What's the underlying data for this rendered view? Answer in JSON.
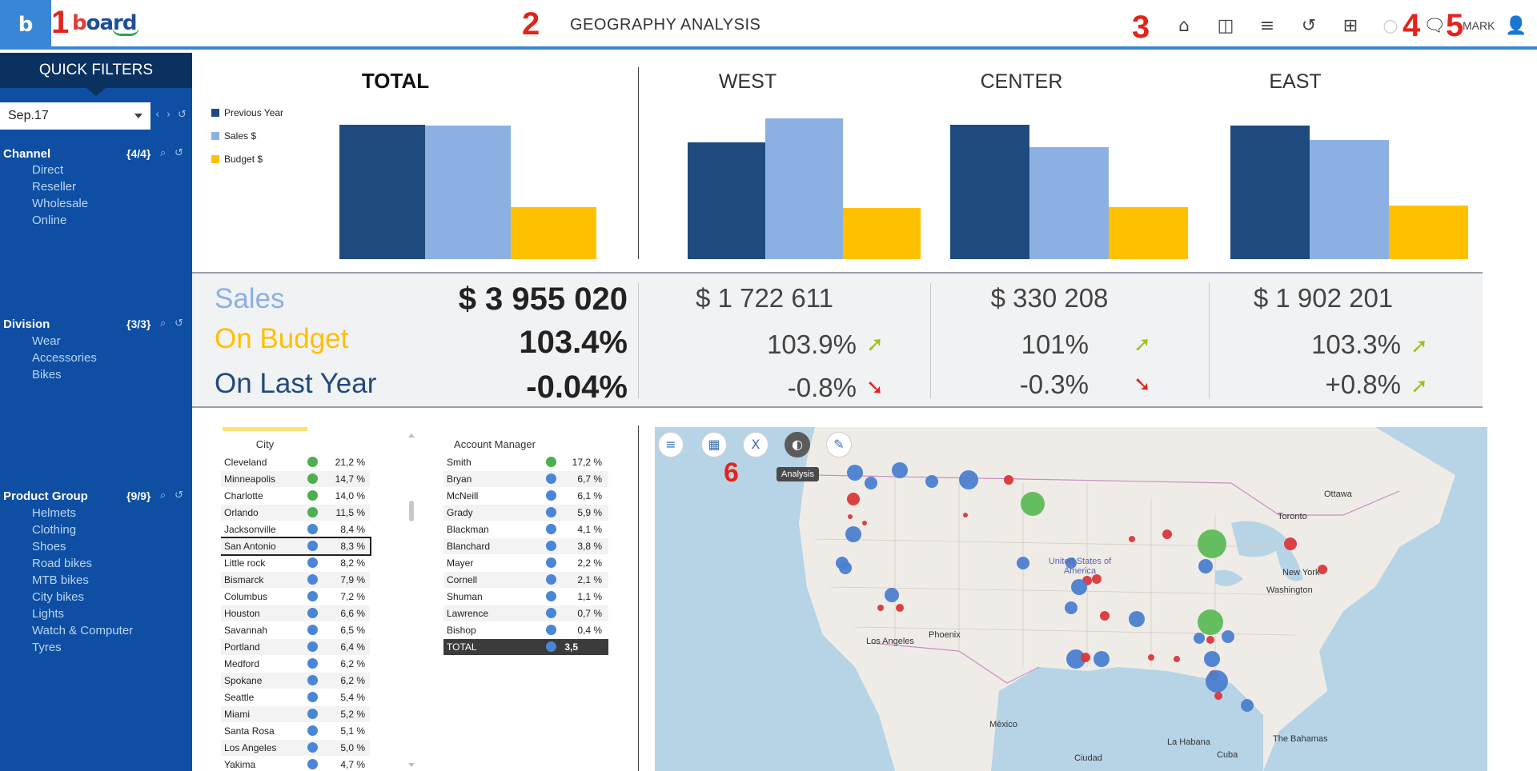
{
  "header": {
    "logo_letter": "b",
    "brand": "board",
    "title": "GEOGRAPHY ANALYSIS",
    "user": "MARK",
    "markers": [
      "1",
      "2",
      "3",
      "4",
      "5",
      "6"
    ],
    "icons": [
      "home-icon",
      "panel-icon",
      "dataflow-icon",
      "refresh-icon",
      "present-icon",
      "status-circle-icon",
      "comments-icon",
      "user-icon"
    ]
  },
  "sidebar": {
    "title": "QUICK FILTERS",
    "period": "Sep.17",
    "filters": [
      {
        "title": "Channel",
        "count": "{4/4}",
        "items": [
          "Direct",
          "Reseller",
          "Wholesale",
          "Online"
        ]
      },
      {
        "title": "Division",
        "count": "{3/3}",
        "items": [
          "Wear",
          "Accessories",
          "Bikes"
        ]
      },
      {
        "title": "Product Group",
        "count": "{9/9}",
        "items": [
          "Helmets",
          "Clothing",
          "Shoes",
          "Road bikes",
          "MTB bikes",
          "City bikes",
          "Lights",
          "Watch & Computer",
          "Tyres"
        ]
      }
    ]
  },
  "legend": [
    "Previous Year",
    "Sales $",
    "Budget $"
  ],
  "colors": {
    "previous_year": "#1f4a7e",
    "sales": "#8db0e3",
    "budget": "#ffc000",
    "up": "#9bc31c",
    "down": "#e3241b",
    "green_dot": "#4caf50",
    "blue_dot": "#4a86d8"
  },
  "chart_data": [
    {
      "type": "bar",
      "title": "TOTAL",
      "categories": [
        "Previous Year",
        "Sales $",
        "Budget $"
      ],
      "values": [
        140,
        139,
        54
      ],
      "ylim": [
        0,
        150
      ]
    },
    {
      "type": "bar",
      "title": "WEST",
      "categories": [
        "Previous Year",
        "Sales $",
        "Budget $"
      ],
      "values": [
        122,
        147,
        53
      ],
      "ylim": [
        0,
        150
      ]
    },
    {
      "type": "bar",
      "title": "CENTER",
      "categories": [
        "Previous Year",
        "Sales $",
        "Budget $"
      ],
      "values": [
        140,
        117,
        54
      ],
      "ylim": [
        0,
        150
      ]
    },
    {
      "type": "bar",
      "title": "EAST",
      "categories": [
        "Previous Year",
        "Sales $",
        "Budget $"
      ],
      "values": [
        139,
        124,
        56
      ],
      "ylim": [
        0,
        150
      ]
    }
  ],
  "kpi": {
    "labels": {
      "sales": "Sales",
      "on_budget": "On Budget",
      "on_last_year": "On Last Year"
    },
    "total": {
      "sales": "$ 3 955 020",
      "on_budget": "103.4%",
      "on_last_year": "-0.04%"
    },
    "regions": [
      {
        "name": "WEST",
        "sales": "$ 1 722 611",
        "on_budget": "103.9%",
        "budget_arrow": "up",
        "on_last_year": "-0.8%",
        "ly_arrow": "down"
      },
      {
        "name": "CENTER",
        "sales": "$ 330 208",
        "on_budget": "101%",
        "budget_arrow": "up",
        "on_last_year": "-0.3%",
        "ly_arrow": "down"
      },
      {
        "name": "EAST",
        "sales": "$ 1 902 201",
        "on_budget": "103.3%",
        "budget_arrow": "up",
        "on_last_year": "+0.8%",
        "ly_arrow": "up"
      }
    ]
  },
  "city_table": {
    "header": "City",
    "rows": [
      {
        "name": "Cleveland",
        "status": "green",
        "pct": "21,2 %"
      },
      {
        "name": "Minneapolis",
        "status": "green",
        "pct": "14,7 %"
      },
      {
        "name": "Charlotte",
        "status": "green",
        "pct": "14,0 %"
      },
      {
        "name": "Orlando",
        "status": "green",
        "pct": "11,5 %"
      },
      {
        "name": "Jacksonville",
        "status": "blue",
        "pct": "8,4 %"
      },
      {
        "name": "San Antonio",
        "status": "blue",
        "pct": "8,3 %"
      },
      {
        "name": "Little rock",
        "status": "blue",
        "pct": "8,2 %"
      },
      {
        "name": "Bismarck",
        "status": "blue",
        "pct": "7,9 %"
      },
      {
        "name": "Columbus",
        "status": "blue",
        "pct": "7,2 %"
      },
      {
        "name": "Houston",
        "status": "blue",
        "pct": "6,6 %"
      },
      {
        "name": "Savannah",
        "status": "blue",
        "pct": "6,5 %"
      },
      {
        "name": "Portland",
        "status": "blue",
        "pct": "6,4 %"
      },
      {
        "name": "Medford",
        "status": "blue",
        "pct": "6,2 %"
      },
      {
        "name": "Spokane",
        "status": "blue",
        "pct": "6,2 %"
      },
      {
        "name": "Seattle",
        "status": "blue",
        "pct": "5,4 %"
      },
      {
        "name": "Miami",
        "status": "blue",
        "pct": "5,2 %"
      },
      {
        "name": "Santa Rosa",
        "status": "blue",
        "pct": "5,1 %"
      },
      {
        "name": "Los Angeles",
        "status": "blue",
        "pct": "5,0 %"
      },
      {
        "name": "Yakima",
        "status": "blue",
        "pct": "4,7 %"
      }
    ]
  },
  "manager_table": {
    "header": "Account Manager",
    "rows": [
      {
        "name": "Smith",
        "status": "green",
        "pct": "17,2 %"
      },
      {
        "name": "Bryan",
        "status": "blue",
        "pct": "6,7 %"
      },
      {
        "name": "McNeill",
        "status": "blue",
        "pct": "6,1 %"
      },
      {
        "name": "Grady",
        "status": "blue",
        "pct": "5,9 %"
      },
      {
        "name": "Blackman",
        "status": "blue",
        "pct": "4,1 %"
      },
      {
        "name": "Blanchard",
        "status": "blue",
        "pct": "3,8 %"
      },
      {
        "name": "Mayer",
        "status": "blue",
        "pct": "2,2 %"
      },
      {
        "name": "Cornell",
        "status": "blue",
        "pct": "2,1 %"
      },
      {
        "name": "Shuman",
        "status": "blue",
        "pct": "1,1 %"
      },
      {
        "name": "Lawrence",
        "status": "blue",
        "pct": "0,7 %"
      },
      {
        "name": "Bishop",
        "status": "blue",
        "pct": "0,4 %"
      }
    ],
    "total_label": "TOTAL",
    "total_value": "3,5"
  },
  "map": {
    "tooltip": "Analysis",
    "labels": [
      "Ottawa",
      "Toronto",
      "New York",
      "Washington",
      "United States of America",
      "Phoenix",
      "Los Angeles",
      "México",
      "La Habana",
      "The Bahamas",
      "Cuba",
      "Ciudad"
    ],
    "buttons": [
      "menu-icon",
      "layers-icon",
      "excel-export-icon",
      "analysis-icon",
      "edit-notes-icon"
    ]
  }
}
